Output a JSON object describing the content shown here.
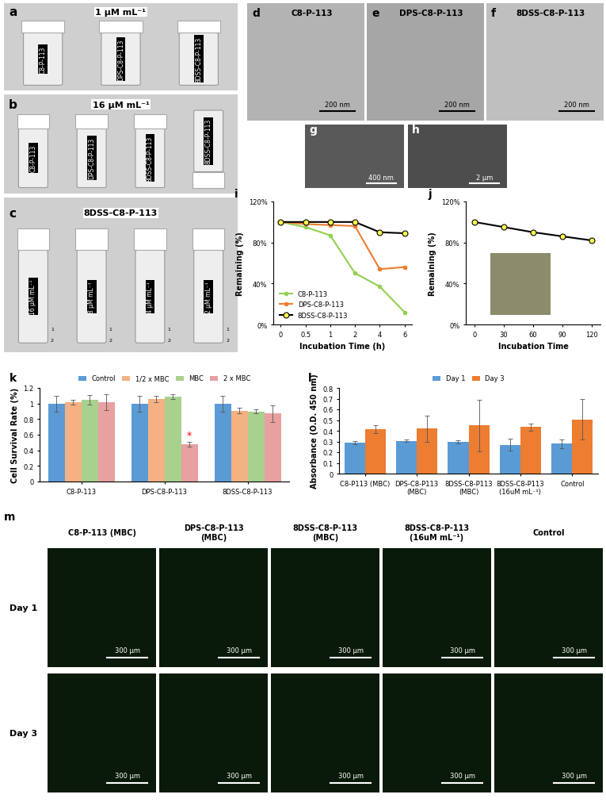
{
  "panels": {
    "a": {
      "letter": "a",
      "title": "1 μM mL⁻¹",
      "vials": [
        "C8-P-113",
        "DPS-C8-P-113",
        "8DSS-C8-P-113"
      ]
    },
    "b": {
      "letter": "b",
      "title": "16 μM mL⁻¹",
      "vials": [
        "C8-P-113",
        "DPS-C8-P-113",
        "8DSS-C8-P-113",
        "8DSS-C8-P-113"
      ]
    },
    "c": {
      "letter": "c",
      "title": "8DSS-C8-P-113",
      "vials": [
        "16 μM mL⁻¹",
        "8 μM mL⁻¹",
        "4 μM mL⁻¹",
        "2 μM mL⁻¹"
      ],
      "markers": [
        "1",
        "2"
      ]
    },
    "d": {
      "letter": "d",
      "title": "C8-P-113",
      "scale_bar": "200 nm"
    },
    "e": {
      "letter": "e",
      "title": "DPS-C8-P-113",
      "scale_bar": "200 nm"
    },
    "f": {
      "letter": "f",
      "title": "8DSS-C8-P-113",
      "scale_bar": "200 nm"
    },
    "g": {
      "letter": "g",
      "scale_bar": "400 nm"
    },
    "h": {
      "letter": "h",
      "scale_bar": "2 μm"
    },
    "m": {
      "letter": "m",
      "columns": [
        "C8-P-113 (MBC)",
        "DPS-C8-P-113 (MBC)",
        "8DSS-C8-P-113 (MBC)",
        "8DSS-C8-P-113 (16uM mL⁻¹)",
        "Control"
      ],
      "rows": [
        "Day 1",
        "Day 3"
      ],
      "scale_bar": "300 μm"
    }
  },
  "chart_data": [
    {
      "letter": "i",
      "type": "line",
      "x_label": "Incubation Time (h)",
      "y_label": "Remaining (%)",
      "categories": [
        "0",
        "0.5",
        "1",
        "2",
        "4",
        "6"
      ],
      "series": [
        {
          "name": "C8-P-113",
          "color": "#92d050",
          "marker": "dot",
          "values": [
            100,
            95,
            87,
            50,
            37,
            12
          ]
        },
        {
          "name": "DPS-C8-P-113",
          "color": "#ed7d31",
          "marker": "dot",
          "values": [
            100,
            98,
            97,
            96,
            54,
            56
          ]
        },
        {
          "name": "8DSS-C8-P-113",
          "color": "#000000",
          "marker": "circle",
          "values": [
            100,
            100,
            100,
            100,
            90,
            89
          ]
        }
      ],
      "ylim": [
        0,
        120
      ],
      "yticks": [
        {
          "value": 0,
          "label": "0%"
        },
        {
          "value": 40,
          "label": "40%"
        },
        {
          "value": 80,
          "label": "80%"
        },
        {
          "value": 120,
          "label": "120%"
        }
      ],
      "legend": "lower left",
      "grid": false
    },
    {
      "letter": "j",
      "type": "line",
      "x_label": "Incubation Time",
      "y_label": "Remaining (%)",
      "categories": [
        "0",
        "30",
        "60",
        "90",
        "120"
      ],
      "series": [
        {
          "name": "8DSS-C8-P-113",
          "color": "#000000",
          "marker": "circle",
          "values": [
            100,
            95,
            90,
            86,
            82
          ]
        }
      ],
      "ylim": [
        0,
        120
      ],
      "yticks": [
        {
          "value": 0,
          "label": "0%"
        },
        {
          "value": 40,
          "label": "40%"
        },
        {
          "value": 80,
          "label": "80%"
        },
        {
          "value": 120,
          "label": "120%"
        }
      ],
      "grid": false
    },
    {
      "letter": "k",
      "type": "bar",
      "y_label": "Cell Survival Rate (%)",
      "categories": [
        "C8-P-113",
        "DPS-C8-P-113",
        "8DSS-C8-P-113"
      ],
      "series": [
        {
          "name": "Control",
          "color": "#5b9bd5",
          "values": [
            1.0,
            1.0,
            1.0
          ],
          "errors": [
            0.1,
            0.1,
            0.1
          ]
        },
        {
          "name": "1/2 x MBC",
          "color": "#f4b183",
          "values": [
            1.02,
            1.06,
            0.91
          ],
          "errors": [
            0.03,
            0.04,
            0.04
          ]
        },
        {
          "name": "MBC",
          "color": "#a9d18e",
          "values": [
            1.05,
            1.09,
            0.9
          ],
          "errors": [
            0.06,
            0.03,
            0.03
          ]
        },
        {
          "name": "2 x MBC",
          "color": "#e8a0a0",
          "values": [
            1.02,
            0.48,
            0.87
          ],
          "errors": [
            0.1,
            0.03,
            0.11
          ]
        }
      ],
      "annotations": [
        {
          "text": "*",
          "category": "DPS-C8-P-113",
          "series": "2 x MBC",
          "color": "#ff0000"
        }
      ],
      "ylim": [
        0,
        1.2
      ],
      "yticks": [
        0,
        0.2,
        0.4,
        0.6,
        0.8,
        1,
        1.2
      ],
      "legend": "top",
      "grid": false
    },
    {
      "letter": "l",
      "type": "bar",
      "y_label": "Absorbance (O.D. 450 nm)",
      "categories": [
        "C8-P113 (MBC)",
        "DPS-C8-P113 (MBC)",
        "8DSS-C8-P113 (MBC)",
        "8DSS-C8-P113 (16uM mL⁻¹)",
        "Control"
      ],
      "series": [
        {
          "name": "Day 1",
          "color": "#5b9bd5",
          "values": [
            0.29,
            0.305,
            0.295,
            0.27,
            0.28
          ],
          "errors": [
            0.015,
            0.01,
            0.015,
            0.055,
            0.04
          ]
        },
        {
          "name": "Day 3",
          "color": "#ed7d31",
          "values": [
            0.415,
            0.42,
            0.45,
            0.435,
            0.505
          ],
          "errors": [
            0.04,
            0.12,
            0.24,
            0.035,
            0.19
          ]
        }
      ],
      "ylim": [
        0,
        0.8
      ],
      "yticks": [
        0,
        0.1,
        0.2,
        0.3,
        0.4,
        0.5,
        0.6,
        0.7,
        0.8
      ],
      "legend": "top",
      "grid": false
    }
  ]
}
